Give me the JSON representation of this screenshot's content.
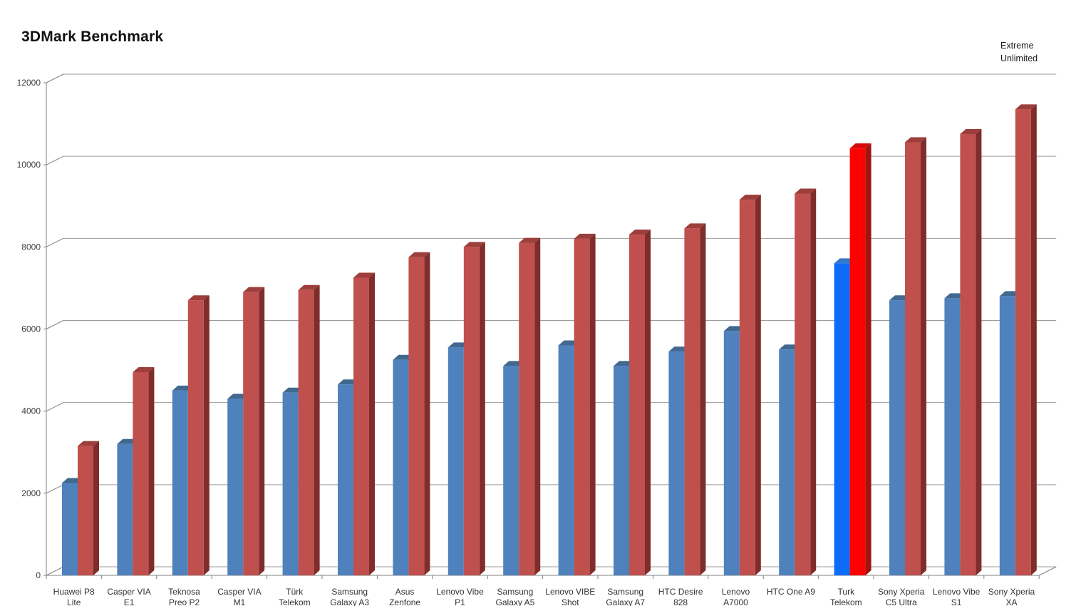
{
  "title": "3DMark Benchmark",
  "legend": {
    "position": "top-right",
    "items": [
      "Extreme",
      "Unlimited"
    ]
  },
  "chart_data": {
    "type": "bar",
    "style": "3d-clustered-column",
    "title": "3DMark Benchmark",
    "categories": [
      "Huawei P8 Lite",
      "Casper VIA E1",
      "Teknosa Preo P2",
      "Casper VIA M1",
      "Türk Telekom",
      "Samsung Galaxy A3",
      "Asus Zenfone",
      "Lenovo Vibe P1",
      "Samsung Galaxy A5",
      "Lenovo VIBE Shot",
      "Samsung Galaxy A7",
      "HTC Desire 828",
      "Lenovo A7000",
      "HTC One A9",
      "Turk Telekom",
      "Sony Xperia C5 Ultra",
      "Lenovo Vibe S1",
      "Sony Xperia XA"
    ],
    "category_label_lines": [
      [
        "Huawei P8",
        "Lite"
      ],
      [
        "Casper VIA",
        "E1"
      ],
      [
        "Teknosa",
        "Preo P2"
      ],
      [
        "Casper VIA",
        "M1"
      ],
      [
        "Türk",
        "Telekom"
      ],
      [
        "Samsung",
        "Galaxy A3"
      ],
      [
        "Asus",
        "Zenfone"
      ],
      [
        "Lenovo Vibe",
        "P1"
      ],
      [
        "Samsung",
        "Galaxy A5"
      ],
      [
        "Lenovo VIBE",
        "Shot"
      ],
      [
        "Samsung",
        "Galaxy A7"
      ],
      [
        "HTC Desire",
        "828"
      ],
      [
        "Lenovo",
        "A7000"
      ],
      [
        "HTC One A9"
      ],
      [
        "Turk",
        "Telekom"
      ],
      [
        "Sony Xperia",
        "C5 Ultra"
      ],
      [
        "Lenovo Vibe",
        "S1"
      ],
      [
        "Sony Xperia",
        "XA"
      ]
    ],
    "series": [
      {
        "name": "Extreme",
        "color": "#4F81BD",
        "top_color": "#41688F",
        "values": [
          2250,
          3200,
          4500,
          4300,
          4450,
          4650,
          5250,
          5550,
          5100,
          5600,
          5100,
          5450,
          5950,
          5500,
          7600,
          6700,
          6750,
          6800
        ]
      },
      {
        "name": "Unlimited",
        "color": "#C0504D",
        "top_color": "#9C3E3B",
        "side_color": "#7E2D2B",
        "values": [
          3150,
          4950,
          6700,
          6900,
          6950,
          7250,
          7750,
          8000,
          8100,
          8200,
          8300,
          8450,
          9150,
          9300,
          10400,
          10550,
          10750,
          11350
        ]
      }
    ],
    "highlight": {
      "category": "Turk Telekom",
      "index": 14,
      "extreme_color": "#0D6BFA",
      "extreme_top_color": "#3779C9",
      "unlimited_color": "#FE0000",
      "unlimited_top_color": "#D40C09",
      "unlimited_side_color": "#9E1411"
    },
    "y_axis": {
      "min": 0,
      "max": 12000,
      "step": 2000,
      "tick_labels": [
        "0",
        "2000",
        "4000",
        "6000",
        "8000",
        "10000",
        "12000"
      ]
    },
    "grid": true,
    "legend_position": "top-right",
    "axis_color": "#808080",
    "grid_color": "#9B9B9B",
    "tick_label_color": "#404040",
    "category_label_color": "#333333"
  }
}
